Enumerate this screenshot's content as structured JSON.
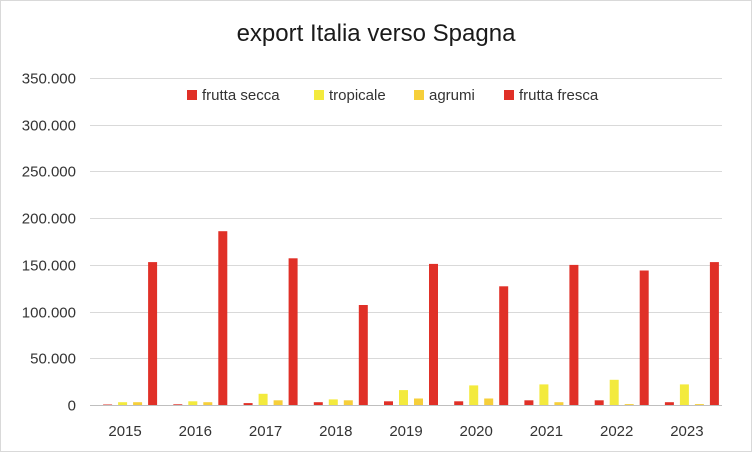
{
  "chart_data": {
    "type": "bar",
    "title": "export Italia verso Spagna",
    "xlabel": "",
    "ylabel": "",
    "categories": [
      "2015",
      "2016",
      "2017",
      "2018",
      "2019",
      "2020",
      "2021",
      "2022",
      "2023"
    ],
    "ylim": [
      0,
      350000
    ],
    "yticks": [
      0,
      50000,
      100000,
      150000,
      200000,
      250000,
      300000,
      350000
    ],
    "ytick_labels": [
      "0",
      "50.000",
      "100.000",
      "150.000",
      "200.000",
      "250.000",
      "300.000",
      "350.000"
    ],
    "grid": "horizontal",
    "legend_position": "top",
    "series": [
      {
        "name": "frutta secca",
        "color": "#e03027",
        "values": [
          500,
          800,
          2000,
          3000,
          4000,
          4000,
          5000,
          5000,
          3000
        ]
      },
      {
        "name": "tropicale",
        "color": "#f3ea3d",
        "values": [
          3000,
          4000,
          12000,
          6000,
          16000,
          21000,
          22000,
          27000,
          22000
        ]
      },
      {
        "name": "agrumi",
        "color": "#f6cf3a",
        "values": [
          3000,
          3000,
          5000,
          5000,
          7000,
          7000,
          3000,
          1000,
          1000
        ]
      },
      {
        "name": "frutta fresca",
        "color": "#e03027",
        "values": [
          153000,
          186000,
          157000,
          107000,
          151000,
          127000,
          150000,
          144000,
          153000
        ]
      }
    ]
  }
}
